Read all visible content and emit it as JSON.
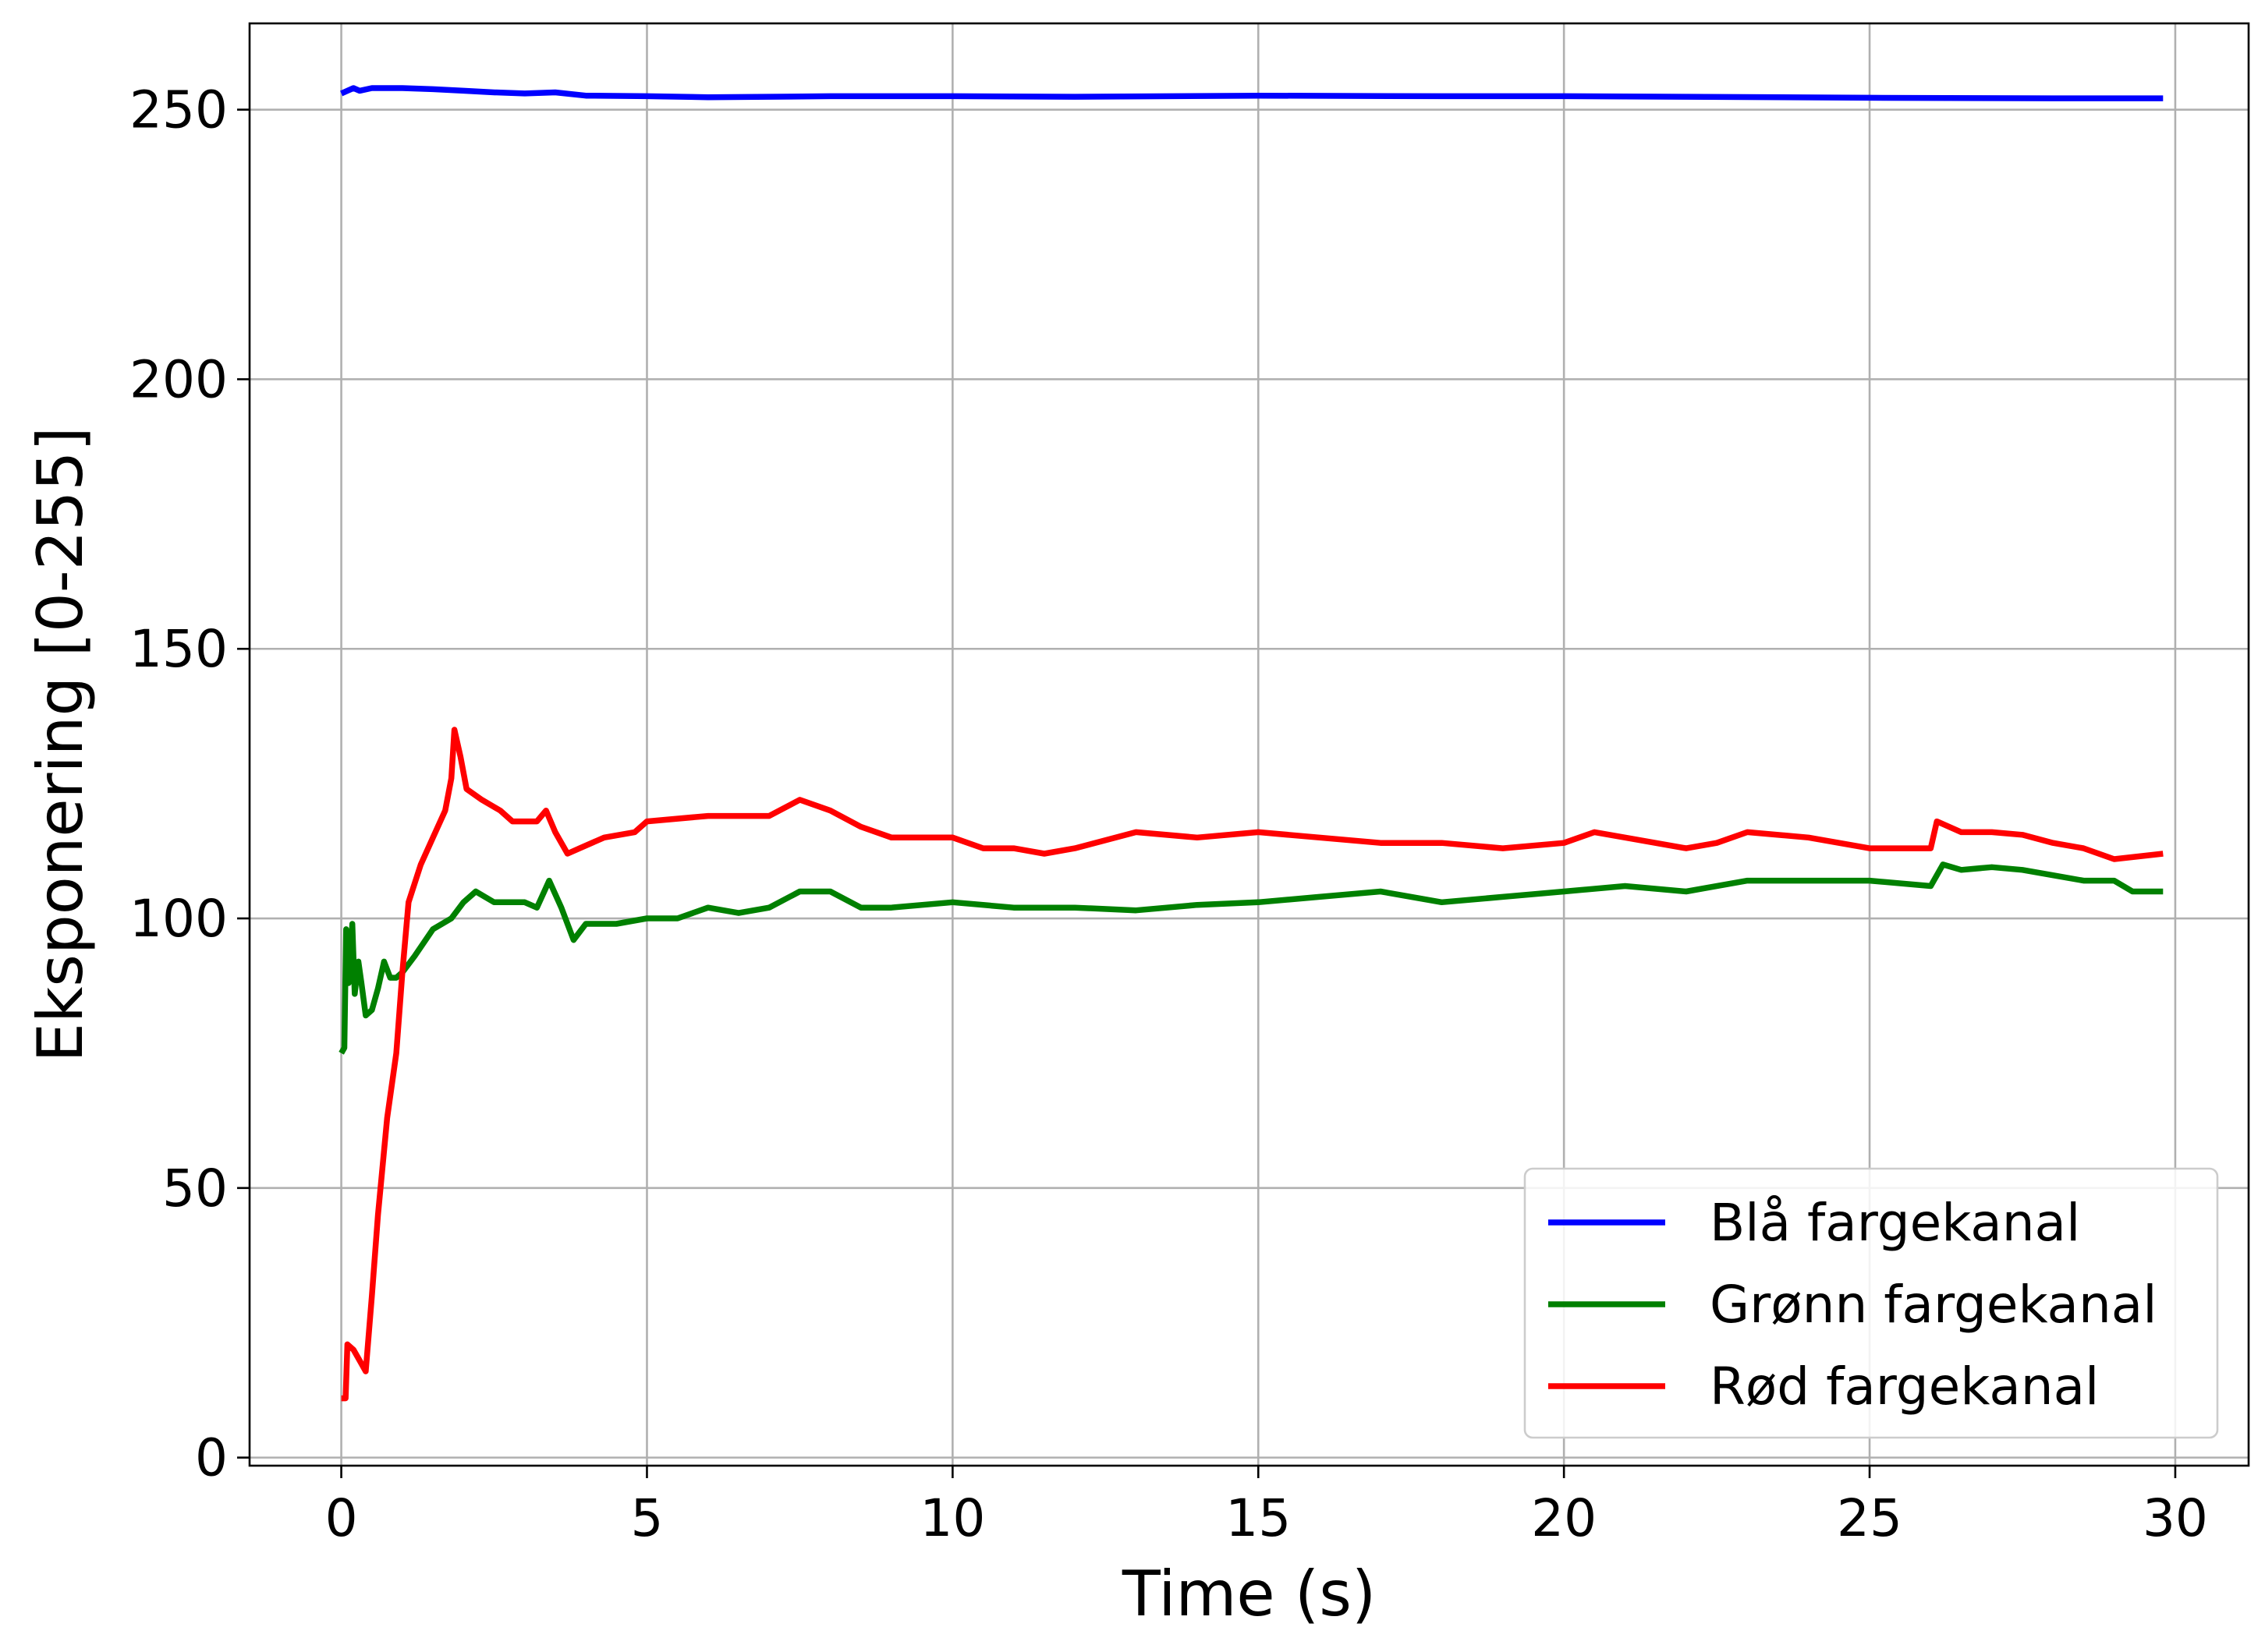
{
  "chart_data": {
    "type": "line",
    "title": "",
    "xlabel": "Time (s)",
    "ylabel": "Eksponering [0-255]",
    "xlim": [
      -1.5,
      31.2
    ],
    "ylim": [
      -1.5,
      266
    ],
    "xticks": [
      0,
      5,
      10,
      15,
      20,
      25,
      30
    ],
    "yticks": [
      0,
      50,
      100,
      150,
      200,
      250
    ],
    "xtick_labels": [
      "0",
      "5",
      "10",
      "15",
      "20",
      "25",
      "30"
    ],
    "ytick_labels": [
      "0",
      "50",
      "100",
      "150",
      "200",
      "250"
    ],
    "grid": true,
    "legend_position": "lower-right",
    "series": [
      {
        "name": "Blå fargekanal",
        "color": "#0000ff",
        "points": [
          [
            0,
            253
          ],
          [
            0.1,
            253.5
          ],
          [
            0.2,
            254
          ],
          [
            0.3,
            253.5
          ],
          [
            0.5,
            254
          ],
          [
            1,
            254
          ],
          [
            1.5,
            253.8
          ],
          [
            2,
            253.5
          ],
          [
            2.5,
            253.2
          ],
          [
            3,
            253
          ],
          [
            3.5,
            253.2
          ],
          [
            4,
            252.6
          ],
          [
            5,
            252.5
          ],
          [
            6,
            252.3
          ],
          [
            7,
            252.4
          ],
          [
            8,
            252.5
          ],
          [
            10,
            252.5
          ],
          [
            12,
            252.4
          ],
          [
            15,
            252.6
          ],
          [
            18,
            252.5
          ],
          [
            20,
            252.5
          ],
          [
            22,
            252.4
          ],
          [
            25,
            252.2
          ],
          [
            28,
            252.1
          ],
          [
            29.8,
            252.1
          ]
        ]
      },
      {
        "name": "Grønn fargekanal",
        "color": "#008000",
        "points": [
          [
            0,
            75
          ],
          [
            0.05,
            76
          ],
          [
            0.08,
            98
          ],
          [
            0.12,
            88
          ],
          [
            0.18,
            99
          ],
          [
            0.22,
            86
          ],
          [
            0.28,
            92
          ],
          [
            0.33,
            88
          ],
          [
            0.4,
            82
          ],
          [
            0.5,
            83
          ],
          [
            0.6,
            87
          ],
          [
            0.7,
            92
          ],
          [
            0.8,
            89
          ],
          [
            0.9,
            89
          ],
          [
            1,
            90
          ],
          [
            1.2,
            93
          ],
          [
            1.5,
            98
          ],
          [
            1.8,
            100
          ],
          [
            2,
            103
          ],
          [
            2.2,
            105
          ],
          [
            2.5,
            103
          ],
          [
            3,
            103
          ],
          [
            3.2,
            102
          ],
          [
            3.4,
            107
          ],
          [
            3.6,
            102
          ],
          [
            3.8,
            96
          ],
          [
            4,
            99
          ],
          [
            4.5,
            99
          ],
          [
            5,
            100
          ],
          [
            5.5,
            100
          ],
          [
            6,
            102
          ],
          [
            6.5,
            101
          ],
          [
            7,
            102
          ],
          [
            7.5,
            105
          ],
          [
            8,
            105
          ],
          [
            8.5,
            102
          ],
          [
            9,
            102
          ],
          [
            10,
            103
          ],
          [
            11,
            102
          ],
          [
            12,
            102
          ],
          [
            13,
            101.5
          ],
          [
            14,
            102.5
          ],
          [
            15,
            103
          ],
          [
            16,
            104
          ],
          [
            17,
            105
          ],
          [
            18,
            103
          ],
          [
            19,
            104
          ],
          [
            20,
            105
          ],
          [
            21,
            106
          ],
          [
            22,
            105
          ],
          [
            23,
            107
          ],
          [
            24,
            107
          ],
          [
            25,
            107
          ],
          [
            26,
            106
          ],
          [
            26.2,
            110
          ],
          [
            26.5,
            109
          ],
          [
            27,
            109.5
          ],
          [
            27.5,
            109
          ],
          [
            28,
            108
          ],
          [
            28.5,
            107
          ],
          [
            29,
            107
          ],
          [
            29.3,
            105
          ],
          [
            29.8,
            105
          ]
        ]
      },
      {
        "name": "Rød fargekanal",
        "color": "#ff0000",
        "points": [
          [
            0,
            11
          ],
          [
            0.07,
            11
          ],
          [
            0.1,
            21
          ],
          [
            0.2,
            20
          ],
          [
            0.3,
            18
          ],
          [
            0.4,
            16
          ],
          [
            0.5,
            30
          ],
          [
            0.6,
            45
          ],
          [
            0.75,
            63
          ],
          [
            0.9,
            75
          ],
          [
            1,
            90
          ],
          [
            1.1,
            103
          ],
          [
            1.3,
            110
          ],
          [
            1.5,
            115
          ],
          [
            1.7,
            120
          ],
          [
            1.8,
            126
          ],
          [
            1.85,
            135
          ],
          [
            1.95,
            130
          ],
          [
            2.05,
            124
          ],
          [
            2.3,
            122
          ],
          [
            2.6,
            120
          ],
          [
            2.8,
            118
          ],
          [
            3.2,
            118
          ],
          [
            3.35,
            120
          ],
          [
            3.5,
            116
          ],
          [
            3.7,
            112
          ],
          [
            3.9,
            113
          ],
          [
            4.3,
            115
          ],
          [
            4.8,
            116
          ],
          [
            5,
            118
          ],
          [
            6,
            119
          ],
          [
            7,
            119
          ],
          [
            7.5,
            122
          ],
          [
            8,
            120
          ],
          [
            8.5,
            117
          ],
          [
            9,
            115
          ],
          [
            10,
            115
          ],
          [
            10.5,
            113
          ],
          [
            11,
            113
          ],
          [
            11.5,
            112
          ],
          [
            12,
            113
          ],
          [
            13,
            116
          ],
          [
            14,
            115
          ],
          [
            15,
            116
          ],
          [
            16,
            115
          ],
          [
            17,
            114
          ],
          [
            18,
            114
          ],
          [
            19,
            113
          ],
          [
            20,
            114
          ],
          [
            20.5,
            116
          ],
          [
            21,
            115
          ],
          [
            22,
            113
          ],
          [
            22.5,
            114
          ],
          [
            23,
            116
          ],
          [
            24,
            115
          ],
          [
            25,
            113
          ],
          [
            26,
            113
          ],
          [
            26.1,
            118
          ],
          [
            26.5,
            116
          ],
          [
            27,
            116
          ],
          [
            27.5,
            115.5
          ],
          [
            28,
            114
          ],
          [
            28.5,
            113
          ],
          [
            29,
            111
          ],
          [
            29.8,
            112
          ]
        ]
      }
    ]
  }
}
